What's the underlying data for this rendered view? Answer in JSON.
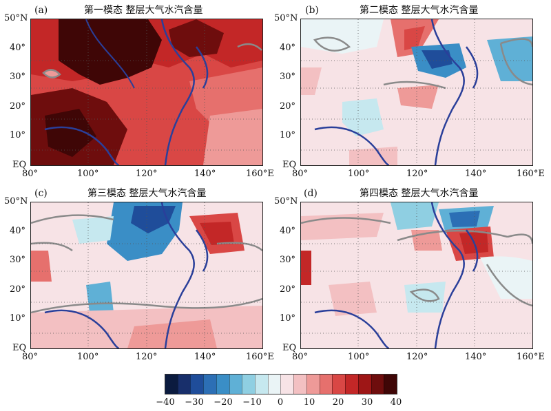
{
  "panels": [
    {
      "tag": "(a)",
      "title": "第一模态  整层大气水汽含量"
    },
    {
      "tag": "(b)",
      "title": "第二模态  整层大气水汽含量"
    },
    {
      "tag": "(c)",
      "title": "第三模态  整层大气水汽含量"
    },
    {
      "tag": "(d)",
      "title": "第四模态  整层大气水汽含量"
    }
  ],
  "axes": {
    "y_ticks": [
      "50°N",
      "40°",
      "30°",
      "20°",
      "10°",
      "EQ"
    ],
    "x_ticks": [
      "80°",
      "100°",
      "120°",
      "140°",
      "160°E"
    ]
  },
  "colorbar": {
    "labels": [
      "−40",
      "−30",
      "−20",
      "−10",
      "0",
      "10",
      "20",
      "30",
      "40"
    ],
    "colors": [
      "#0b1b3f",
      "#182f6b",
      "#1f4d9a",
      "#2c6fb5",
      "#3a8ec6",
      "#5fb0d6",
      "#8fcfe2",
      "#c6e8ef",
      "#eaf4f6",
      "#f7e3e6",
      "#f3c0c2",
      "#ee9a98",
      "#e6706d",
      "#d94745",
      "#c32727",
      "#9e1616",
      "#6e0d0d",
      "#3f0606"
    ]
  },
  "colors": {
    "coastline": "#2a3f9a",
    "contour": "#8a8a8a",
    "grid": "#555555"
  }
}
